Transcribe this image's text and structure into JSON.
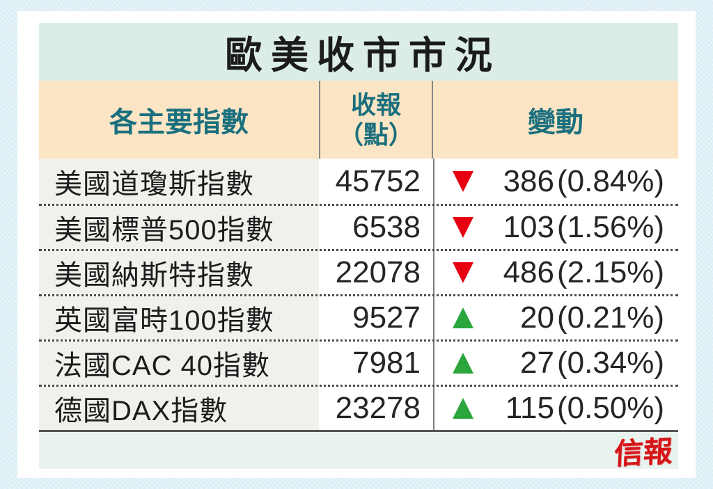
{
  "table": {
    "title": "歐美收市市況",
    "header": {
      "index_label": "各主要指數",
      "close_label_line1": "收報",
      "close_label_line2": "（點）",
      "change_label": "變動"
    },
    "rows": [
      {
        "name": "美國道瓊斯指數",
        "close": "45752",
        "direction": "down",
        "change": "386",
        "change_pct": "(0.84%)"
      },
      {
        "name": "美國標普500指數",
        "close": "6538",
        "direction": "down",
        "change": "103",
        "change_pct": "(1.56%)"
      },
      {
        "name": "美國納斯特指數",
        "close": "22078",
        "direction": "down",
        "change": "486",
        "change_pct": "(2.15%)"
      },
      {
        "name": "英國富時100指數",
        "close": "9527",
        "direction": "up",
        "change": "20",
        "change_pct": "(0.21%)"
      },
      {
        "name": "法國CAC 40指數",
        "close": "7981",
        "direction": "up",
        "change": "27",
        "change_pct": "(0.34%)"
      },
      {
        "name": "德國DAX指數",
        "close": "23278",
        "direction": "up",
        "change": "115",
        "change_pct": "(0.50%)"
      }
    ],
    "colors": {
      "up": "#2aa63c",
      "down": "#e60012",
      "header_text": "#1a6f7e",
      "header_bg": "#fbe5c4",
      "title_bg": "#dcede9",
      "footer_bg": "#e8f3ef",
      "logo_color": "#d61518"
    }
  },
  "brand": {
    "logo_text": "信報"
  },
  "chart_data": {
    "type": "table",
    "title": "歐美收市市況",
    "columns": [
      "各主要指數",
      "收報（點）",
      "變動"
    ],
    "rows": [
      {
        "index": "美國道瓊斯指數",
        "close": 45752,
        "change": -386,
        "change_pct": -0.84
      },
      {
        "index": "美國標普500指數",
        "close": 6538,
        "change": -103,
        "change_pct": -1.56
      },
      {
        "index": "美國納斯特指數",
        "close": 22078,
        "change": -486,
        "change_pct": -2.15
      },
      {
        "index": "英國富時100指數",
        "close": 9527,
        "change": 20,
        "change_pct": 0.21
      },
      {
        "index": "法國CAC 40指數",
        "close": 7981,
        "change": 27,
        "change_pct": 0.34
      },
      {
        "index": "德國DAX指數",
        "close": 23278,
        "change": 115,
        "change_pct": 0.5
      }
    ],
    "source_logo": "信報",
    "legend": {
      "down_marker": "red-down-triangle",
      "up_marker": "green-up-triangle"
    }
  }
}
